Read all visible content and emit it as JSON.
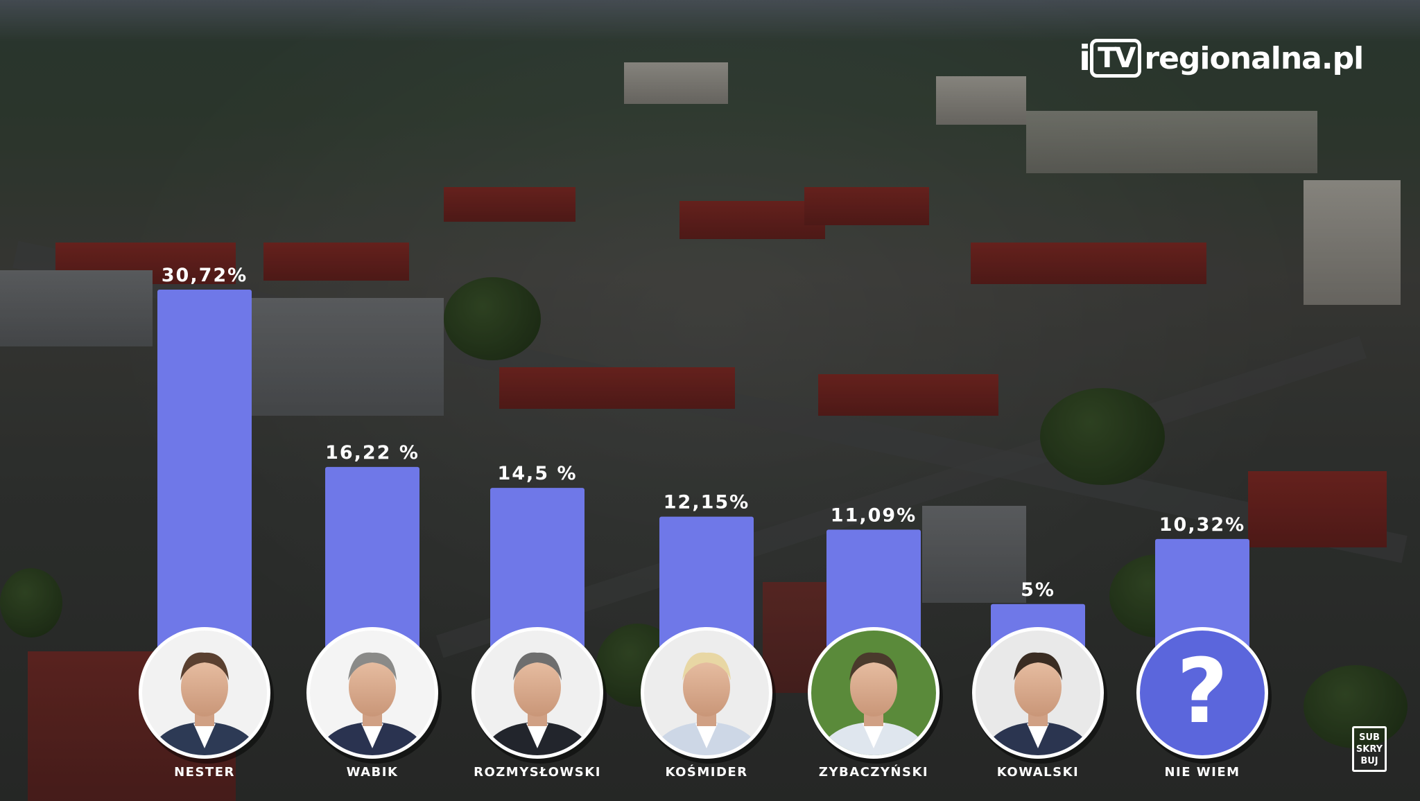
{
  "brand": {
    "logo_text": "iTVregionalna.pl",
    "bar_color": "#6f78e8",
    "question_circle_color": "#5b66dc"
  },
  "subscribe_badge": [
    "SUB",
    "SKRY",
    "BUJ"
  ],
  "chart_data": {
    "type": "bar",
    "title": "",
    "xlabel": "",
    "ylabel": "",
    "ylim": [
      0,
      30.72
    ],
    "grid": false,
    "categories": [
      "NESTER",
      "WABIK",
      "ROZMYSŁOWSKI",
      "KOŚMIDER",
      "ZYBACZYŃSKI",
      "KOWALSKI",
      "NIE WIEM"
    ],
    "values": [
      30.72,
      16.22,
      14.5,
      12.15,
      11.09,
      5,
      10.32
    ],
    "value_labels": [
      "30,72%",
      "16,22 %",
      "14,5 %",
      "12,15%",
      "11,09%",
      "5%",
      "10,32%"
    ],
    "avatars": [
      "portrait-icon",
      "portrait-icon",
      "portrait-icon",
      "portrait-icon",
      "portrait-icon",
      "portrait-icon",
      "question-mark-icon"
    ]
  }
}
